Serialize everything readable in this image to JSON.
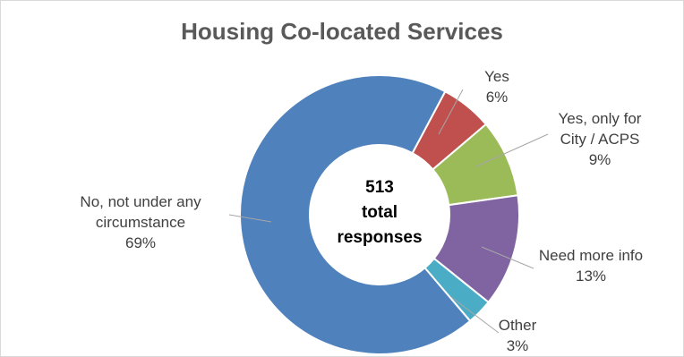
{
  "chart_data": {
    "type": "pie",
    "title": "Housing Co-located Services",
    "center_text": [
      "513",
      "total",
      "responses"
    ],
    "slices": [
      {
        "name": "Yes",
        "value": 6,
        "pct": "6%",
        "color": "#c0504d"
      },
      {
        "name": "Yes, only for City / ACPS",
        "value": 9,
        "pct": "9%",
        "color": "#9bbb59"
      },
      {
        "name": "Need more info",
        "value": 13,
        "pct": "13%",
        "color": "#8064a2"
      },
      {
        "name": "Other",
        "value": 3,
        "pct": "3%",
        "color": "#4bacc6"
      },
      {
        "name": "No, not under any circumstance",
        "value": 69,
        "pct": "69%",
        "color": "#4f81bd"
      }
    ],
    "labels": [
      {
        "lines": [
          "Yes",
          "6%"
        ]
      },
      {
        "lines": [
          "Yes, only for",
          "City / ACPS",
          "9%"
        ]
      },
      {
        "lines": [
          "Need more info",
          "13%"
        ]
      },
      {
        "lines": [
          "Other",
          "3%"
        ]
      },
      {
        "lines": [
          "No, not under any",
          "circumstance",
          "69%"
        ]
      }
    ]
  }
}
